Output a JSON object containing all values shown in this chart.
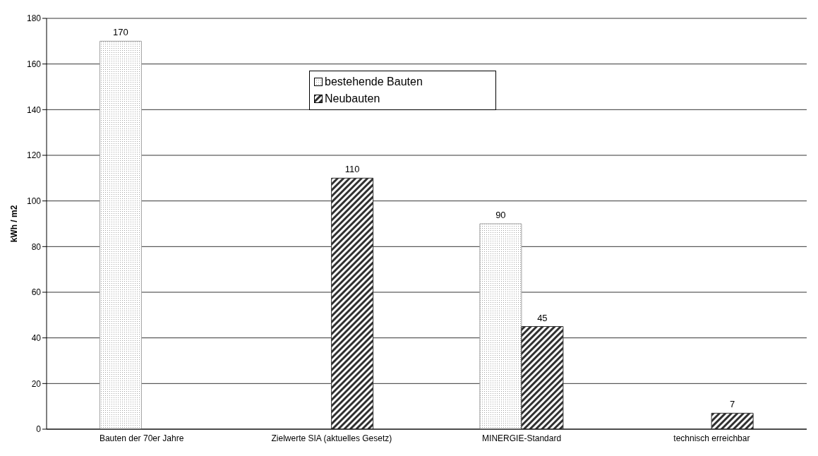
{
  "chart_data": {
    "type": "bar",
    "ylabel": "kWh / m2",
    "categories": [
      "Bauten der 70er Jahre",
      "Zielwerte SIA (aktuelles Gesetz)",
      "MINERGIE-Standard",
      "technisch erreichbar"
    ],
    "series": [
      {
        "name": "bestehende Bauten",
        "color": "#a0a0a0",
        "values": [
          170,
          null,
          90,
          null
        ]
      },
      {
        "name": "Neubauten",
        "color": "#303030",
        "values": [
          null,
          110,
          45,
          7
        ]
      }
    ],
    "ylim": [
      0,
      180
    ],
    "yticks": [
      0,
      20,
      40,
      60,
      80,
      100,
      120,
      140,
      160,
      180
    ],
    "grid": "y",
    "legend": "top",
    "data_labels": true
  }
}
